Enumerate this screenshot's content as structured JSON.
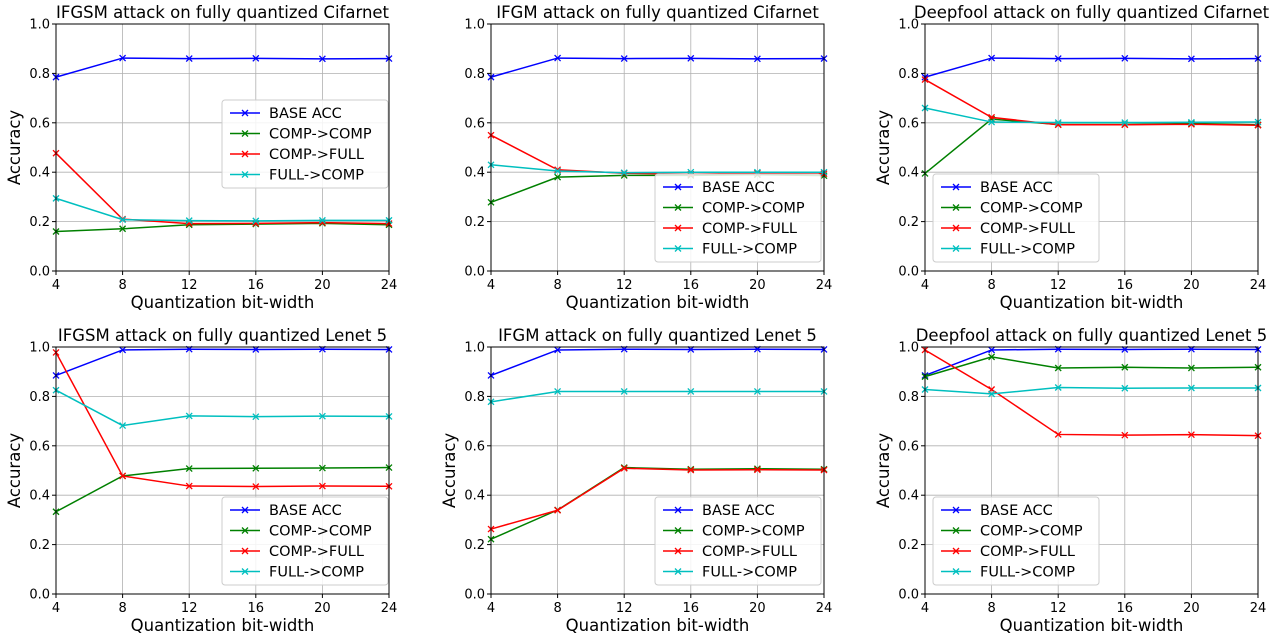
{
  "chart_data": [
    {
      "type": "line",
      "title": "IFGSM attack on fully quantized Cifarnet",
      "xlabel": "Quantization bit-width",
      "ylabel": "Accuracy",
      "x": [
        4,
        8,
        12,
        16,
        20,
        24
      ],
      "xticks": [
        "4",
        "8",
        "12",
        "16",
        "20",
        "24"
      ],
      "yticks": [
        "0.0",
        "0.2",
        "0.4",
        "0.6",
        "0.8",
        "1.0"
      ],
      "xlim": [
        4,
        24
      ],
      "ylim": [
        0,
        1
      ],
      "grid": true,
      "legend_position": "center-right",
      "series": [
        {
          "name": "BASE ACC",
          "color": "#0000ff",
          "values": [
            0.785,
            0.862,
            0.86,
            0.861,
            0.859,
            0.86
          ]
        },
        {
          "name": "COMP->COMP",
          "color": "#008000",
          "values": [
            0.16,
            0.171,
            0.187,
            0.19,
            0.193,
            0.187
          ]
        },
        {
          "name": "COMP->FULL",
          "color": "#ff0000",
          "values": [
            0.477,
            0.21,
            0.192,
            0.193,
            0.196,
            0.192
          ]
        },
        {
          "name": "FULL->COMP",
          "color": "#00bfbf",
          "values": [
            0.294,
            0.208,
            0.204,
            0.203,
            0.205,
            0.205
          ]
        }
      ]
    },
    {
      "type": "line",
      "title": "IFGM attack on fully quantized Cifarnet",
      "xlabel": "Quantization bit-width",
      "ylabel": "",
      "x": [
        4,
        8,
        12,
        16,
        20,
        24
      ],
      "xticks": [
        "4",
        "8",
        "12",
        "16",
        "20",
        "24"
      ],
      "yticks": [
        "0.0",
        "0.2",
        "0.4",
        "0.6",
        "0.8",
        "1.0"
      ],
      "xlim": [
        4,
        24
      ],
      "ylim": [
        0,
        1
      ],
      "grid": true,
      "legend_position": "lower-right",
      "series": [
        {
          "name": "BASE ACC",
          "color": "#0000ff",
          "values": [
            0.785,
            0.862,
            0.86,
            0.861,
            0.859,
            0.86
          ]
        },
        {
          "name": "COMP->COMP",
          "color": "#008000",
          "values": [
            0.278,
            0.38,
            0.387,
            0.387,
            0.39,
            0.386
          ]
        },
        {
          "name": "COMP->FULL",
          "color": "#ff0000",
          "values": [
            0.55,
            0.41,
            0.396,
            0.392,
            0.396,
            0.394
          ]
        },
        {
          "name": "FULL->COMP",
          "color": "#00bfbf",
          "values": [
            0.43,
            0.405,
            0.398,
            0.4,
            0.4,
            0.4
          ]
        }
      ]
    },
    {
      "type": "line",
      "title": "Deepfool attack on fully quantized Cifarnet",
      "xlabel": "Quantization bit-width",
      "ylabel": "Accuracy",
      "x": [
        4,
        8,
        12,
        16,
        20,
        24
      ],
      "xticks": [
        "4",
        "8",
        "12",
        "16",
        "20",
        "24"
      ],
      "yticks": [
        "0.0",
        "0.2",
        "0.4",
        "0.6",
        "0.8",
        "1.0"
      ],
      "xlim": [
        4,
        24
      ],
      "ylim": [
        0,
        1
      ],
      "grid": true,
      "legend_position": "lower-left",
      "series": [
        {
          "name": "BASE ACC",
          "color": "#0000ff",
          "values": [
            0.785,
            0.862,
            0.86,
            0.861,
            0.859,
            0.86
          ]
        },
        {
          "name": "COMP->COMP",
          "color": "#008000",
          "values": [
            0.395,
            0.615,
            0.593,
            0.593,
            0.597,
            0.592
          ]
        },
        {
          "name": "COMP->FULL",
          "color": "#ff0000",
          "values": [
            0.775,
            0.622,
            0.592,
            0.592,
            0.594,
            0.59
          ]
        },
        {
          "name": "FULL->COMP",
          "color": "#00bfbf",
          "values": [
            0.66,
            0.603,
            0.601,
            0.601,
            0.602,
            0.603
          ]
        }
      ]
    },
    {
      "type": "line",
      "title": "IFGSM attack on fully quantized Lenet 5",
      "xlabel": "Quantization bit-width",
      "ylabel": "Accuracy",
      "x": [
        4,
        8,
        12,
        16,
        20,
        24
      ],
      "xticks": [
        "4",
        "8",
        "12",
        "16",
        "20",
        "24"
      ],
      "yticks": [
        "0.0",
        "0.2",
        "0.4",
        "0.6",
        "0.8",
        "1.0"
      ],
      "xlim": [
        4,
        24
      ],
      "ylim": [
        0,
        1
      ],
      "grid": true,
      "legend_position": "lower-right",
      "series": [
        {
          "name": "BASE ACC",
          "color": "#0000ff",
          "values": [
            0.885,
            0.988,
            0.991,
            0.99,
            0.991,
            0.99
          ]
        },
        {
          "name": "COMP->COMP",
          "color": "#008000",
          "values": [
            0.333,
            0.478,
            0.508,
            0.509,
            0.51,
            0.512
          ]
        },
        {
          "name": "COMP->FULL",
          "color": "#ff0000",
          "values": [
            0.978,
            0.478,
            0.437,
            0.435,
            0.437,
            0.436
          ]
        },
        {
          "name": "FULL->COMP",
          "color": "#00bfbf",
          "values": [
            0.825,
            0.682,
            0.721,
            0.718,
            0.72,
            0.719
          ]
        }
      ]
    },
    {
      "type": "line",
      "title": "IFGM attack on fully quantized Lenet 5",
      "xlabel": "Quantization bit-width",
      "ylabel": "Accuracy",
      "x": [
        4,
        8,
        12,
        16,
        20,
        24
      ],
      "xticks": [
        "4",
        "8",
        "12",
        "16",
        "20",
        "24"
      ],
      "yticks": [
        "0.0",
        "0.2",
        "0.4",
        "0.6",
        "0.8",
        "1.0"
      ],
      "xlim": [
        4,
        24
      ],
      "ylim": [
        0,
        1
      ],
      "grid": true,
      "legend_position": "lower-right",
      "series": [
        {
          "name": "BASE ACC",
          "color": "#0000ff",
          "values": [
            0.885,
            0.988,
            0.991,
            0.99,
            0.991,
            0.99
          ]
        },
        {
          "name": "COMP->COMP",
          "color": "#008000",
          "values": [
            0.222,
            0.34,
            0.512,
            0.505,
            0.507,
            0.505
          ]
        },
        {
          "name": "COMP->FULL",
          "color": "#ff0000",
          "values": [
            0.263,
            0.339,
            0.509,
            0.502,
            0.503,
            0.502
          ]
        },
        {
          "name": "FULL->COMP",
          "color": "#00bfbf",
          "values": [
            0.778,
            0.82,
            0.82,
            0.82,
            0.82,
            0.82
          ]
        }
      ]
    },
    {
      "type": "line",
      "title": "Deepfool attack on fully quantized Lenet 5",
      "xlabel": "Quantization bit-width",
      "ylabel": "Accuracy",
      "x": [
        4,
        8,
        12,
        16,
        20,
        24
      ],
      "xticks": [
        "4",
        "8",
        "12",
        "16",
        "20",
        "24"
      ],
      "yticks": [
        "0.0",
        "0.2",
        "0.4",
        "0.6",
        "0.8",
        "1.0"
      ],
      "xlim": [
        4,
        24
      ],
      "ylim": [
        0,
        1
      ],
      "grid": true,
      "legend_position": "lower-left",
      "series": [
        {
          "name": "BASE ACC",
          "color": "#0000ff",
          "values": [
            0.885,
            0.988,
            0.991,
            0.99,
            0.991,
            0.99
          ]
        },
        {
          "name": "COMP->COMP",
          "color": "#008000",
          "values": [
            0.88,
            0.96,
            0.915,
            0.918,
            0.915,
            0.918
          ]
        },
        {
          "name": "COMP->FULL",
          "color": "#ff0000",
          "values": [
            0.988,
            0.828,
            0.646,
            0.643,
            0.645,
            0.641
          ]
        },
        {
          "name": "FULL->COMP",
          "color": "#00bfbf",
          "values": [
            0.828,
            0.81,
            0.836,
            0.833,
            0.834,
            0.834
          ]
        }
      ]
    }
  ]
}
